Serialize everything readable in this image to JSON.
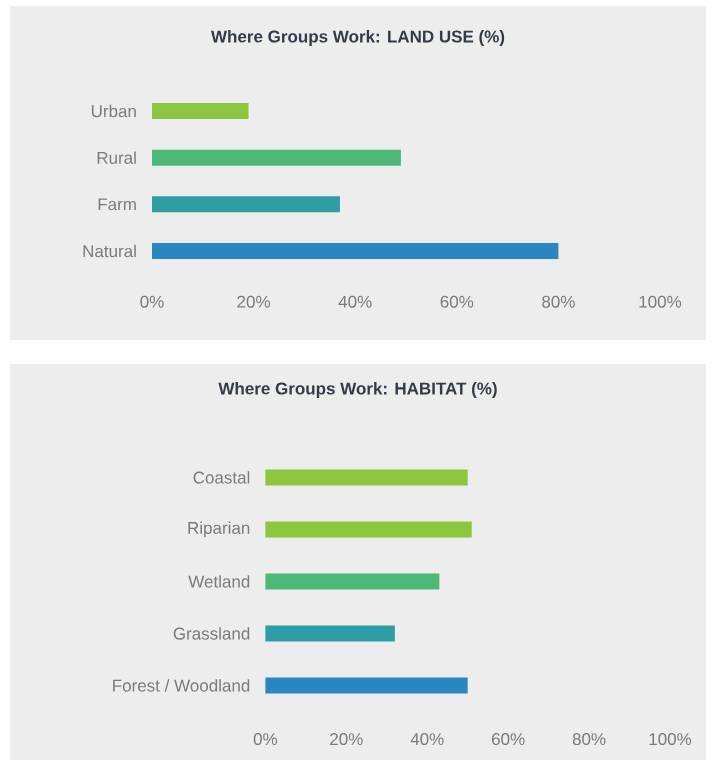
{
  "chart_data": [
    {
      "type": "bar",
      "orientation": "horizontal",
      "title": "Where Groups Work: LAND USE (%)",
      "categories": [
        "Urban",
        "Rural",
        "Farm",
        "Natural"
      ],
      "values": [
        19,
        49,
        37,
        80
      ],
      "colors": [
        "#8cc63f",
        "#4cb87a",
        "#2e9da3",
        "#2a86bf"
      ],
      "xlim": [
        0,
        100
      ],
      "xticks": [
        {
          "value": 0,
          "label": "0%"
        },
        {
          "value": 20,
          "label": "20%"
        },
        {
          "value": 40,
          "label": "40%"
        },
        {
          "value": 60,
          "label": "60%"
        },
        {
          "value": 80,
          "label": "80%"
        },
        {
          "value": 100,
          "label": "100%"
        }
      ]
    },
    {
      "type": "bar",
      "orientation": "horizontal",
      "title": "Where Groups Work: HABITAT (%)",
      "categories": [
        "Coastal",
        "Riparian",
        "Wetland",
        "Grassland",
        "Forest / Woodland"
      ],
      "values": [
        50,
        51,
        43,
        32,
        50
      ],
      "colors": [
        "#8cc63f",
        "#8cc63f",
        "#4cb87a",
        "#2e9da3",
        "#2a86bf"
      ],
      "xlim": [
        0,
        100
      ],
      "xticks": [
        {
          "value": 0,
          "label": "0%"
        },
        {
          "value": 20,
          "label": "20%"
        },
        {
          "value": 40,
          "label": "40%"
        },
        {
          "value": 60,
          "label": "60%"
        },
        {
          "value": 80,
          "label": "80%"
        },
        {
          "value": 100,
          "label": "100%"
        }
      ]
    }
  ]
}
